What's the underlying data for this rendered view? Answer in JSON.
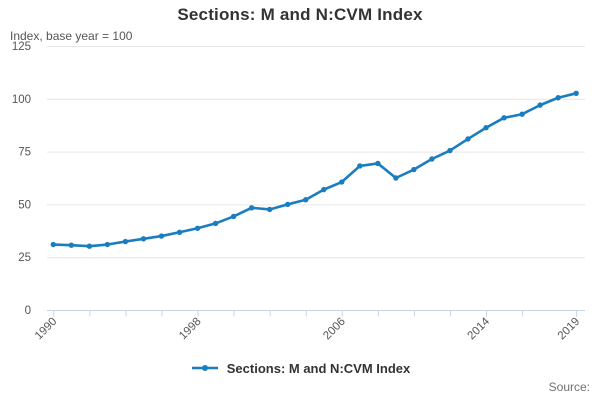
{
  "header": {
    "title": "Sections: M and N:CVM Index",
    "subtitle": "Index, base year = 100"
  },
  "legend": {
    "label": "Sections: M and N:CVM Index"
  },
  "source": {
    "label": "Source:"
  },
  "colors": {
    "line": "#1a7dbf",
    "grid": "#e6e6e6",
    "axis": "#c9d4e2",
    "title_text": "#333333",
    "tick_text": "#555555",
    "source_text": "#707070"
  },
  "chart_data": {
    "type": "line",
    "title": "Sections: M and N:CVM Index",
    "ylabel": "Index, base year = 100",
    "legend_position": "bottom",
    "grid": "horizontal",
    "marker": "circle",
    "ylim": [
      0,
      125
    ],
    "yticks": [
      0,
      25,
      50,
      75,
      100,
      125
    ],
    "ytick_labels": [
      "0",
      "25",
      "50",
      "75",
      "100",
      "125"
    ],
    "xlim": [
      1990,
      2019
    ],
    "xtick_mark_years": [
      1990,
      1992,
      1994,
      1996,
      1998,
      2000,
      2002,
      2004,
      2006,
      2008,
      2010,
      2012,
      2014,
      2016,
      2019
    ],
    "xtick_label_years": [
      1990,
      1998,
      2006,
      2014,
      2019
    ],
    "xtick_labels": [
      "1990",
      "1998",
      "2006",
      "2014",
      "2019"
    ],
    "x": [
      1990,
      1991,
      1992,
      1993,
      1994,
      1995,
      1996,
      1997,
      1998,
      1999,
      2000,
      2001,
      2002,
      2003,
      2004,
      2005,
      2006,
      2007,
      2008,
      2009,
      2010,
      2011,
      2012,
      2013,
      2014,
      2015,
      2016,
      2017,
      2018,
      2019
    ],
    "series": [
      {
        "name": "Sections: M and N:CVM Index",
        "values": [
          31.0,
          30.7,
          30.2,
          31.0,
          32.4,
          33.7,
          35.0,
          36.8,
          38.7,
          41.0,
          44.3,
          48.4,
          47.6,
          50.0,
          52.2,
          57.0,
          60.6,
          68.2,
          69.4,
          62.5,
          66.5,
          71.5,
          75.5,
          81.0,
          86.3,
          91.0,
          92.7,
          97.0,
          100.5,
          102.6
        ]
      }
    ]
  }
}
